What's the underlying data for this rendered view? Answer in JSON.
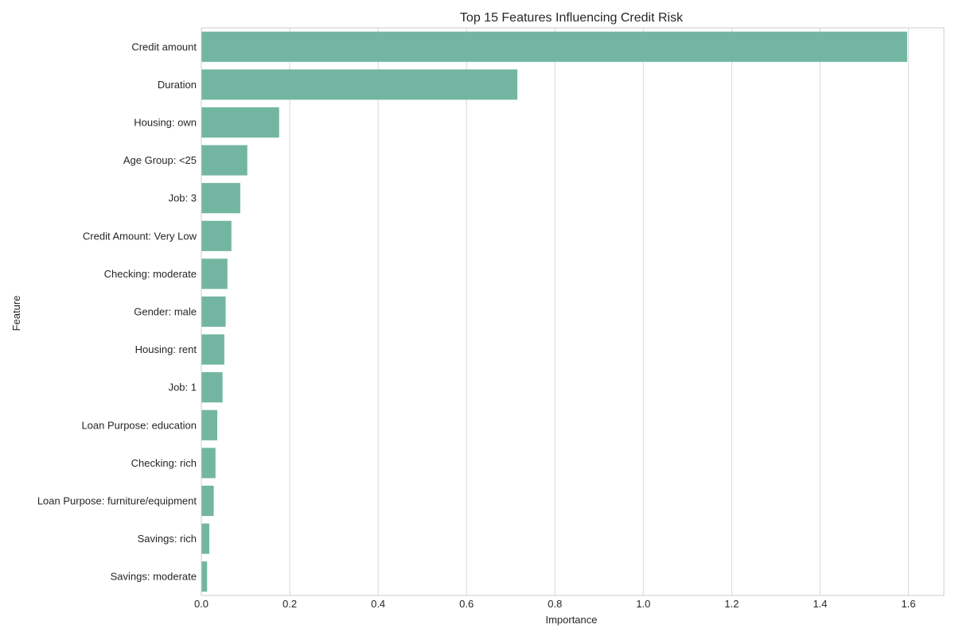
{
  "chart_data": {
    "type": "bar",
    "orientation": "horizontal",
    "title": "Top 15 Features Influencing Credit Risk",
    "xlabel": "Importance",
    "ylabel": "Feature",
    "xlim": [
      0,
      1.68
    ],
    "x_ticks": [
      0,
      0.2,
      0.4,
      0.6,
      0.8,
      1.0,
      1.2,
      1.4,
      1.6
    ],
    "x_tick_labels": [
      "0.0",
      "0.2",
      "0.4",
      "0.6",
      "0.8",
      "1.0",
      "1.2",
      "1.4",
      "1.6"
    ],
    "grid": true,
    "bar_color": "#72b6a1",
    "categories": [
      "Credit amount",
      "Duration",
      "Housing: own",
      "Age Group: <25",
      "Job: 3",
      "Credit Amount: Very Low",
      "Checking: moderate",
      "Gender: male",
      "Housing: rent",
      "Job: 1",
      "Loan Purpose: education",
      "Checking: rich",
      "Loan Purpose: furniture/equipment",
      "Savings: rich",
      "Savings: moderate"
    ],
    "values": [
      1.597,
      0.715,
      0.176,
      0.104,
      0.088,
      0.068,
      0.059,
      0.055,
      0.052,
      0.048,
      0.036,
      0.032,
      0.028,
      0.018,
      0.013
    ]
  }
}
